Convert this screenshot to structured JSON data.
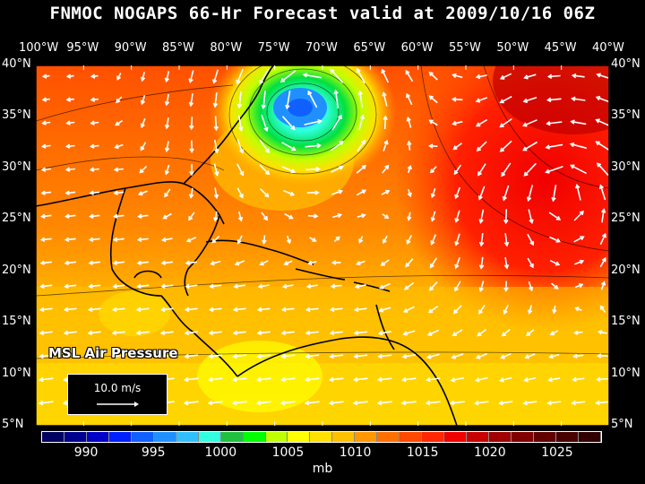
{
  "title": "FNMOC NOGAPS 66-Hr Forecast valid at 2009/10/16 06Z",
  "longitude_labels": [
    "100°W",
    "95°W",
    "90°W",
    "85°W",
    "80°W",
    "75°W",
    "70°W",
    "65°W",
    "60°W",
    "55°W",
    "50°W",
    "45°W",
    "40°W"
  ],
  "latitude_labels": [
    "40°N",
    "35°N",
    "30°N",
    "25°N",
    "20°N",
    "15°N",
    "10°N",
    "5°N"
  ],
  "map_title": "MSL Air Pressure",
  "reference_vector": {
    "label": "10.0 m/s"
  },
  "legend": {
    "units": "mb",
    "labels": [
      "990",
      "995",
      "1000",
      "1005",
      "1010",
      "1015",
      "1020",
      "1025"
    ],
    "colors": [
      "#000060",
      "#000090",
      "#0000c8",
      "#0020ff",
      "#1060ff",
      "#2090ff",
      "#30c0ff",
      "#30ffe0",
      "#20c040",
      "#00ff00",
      "#c0ff00",
      "#ffff00",
      "#ffe000",
      "#ffc000",
      "#ff9800",
      "#ff7000",
      "#ff4800",
      "#ff2800",
      "#f00000",
      "#c80000",
      "#a00000",
      "#800000",
      "#600000",
      "#480000",
      "#300000"
    ]
  },
  "low_center": {
    "lon": -71.5,
    "lat": 36.5
  }
}
